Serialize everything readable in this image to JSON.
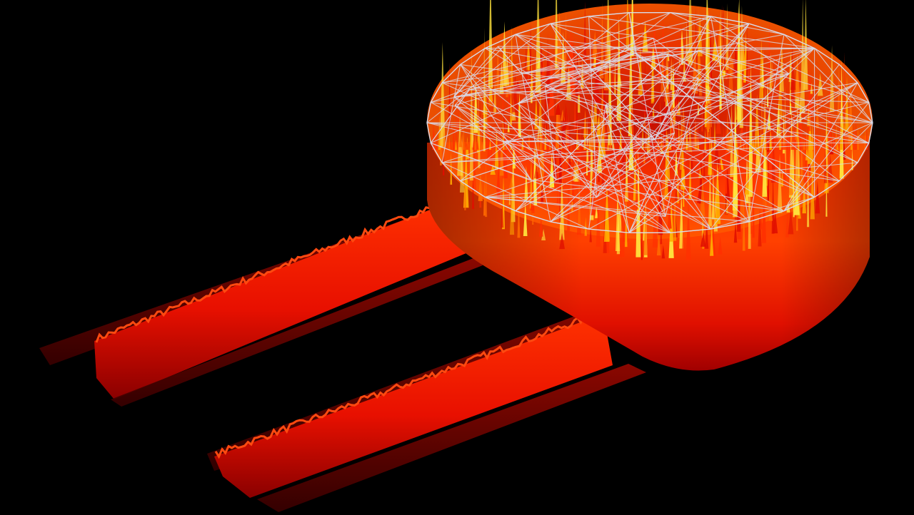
{
  "scene": {
    "subject": "3d-heat-density-plot",
    "background_color": "#000000",
    "wireframe_color": "#d8dbea",
    "palette": {
      "deep": "#5a0000",
      "dark_red": "#a80000",
      "red": "#e00e00",
      "red_orange": "#ff3000",
      "orange": "#ff6a00",
      "amber": "#ffaa00",
      "yellow": "#ffe23c"
    }
  }
}
